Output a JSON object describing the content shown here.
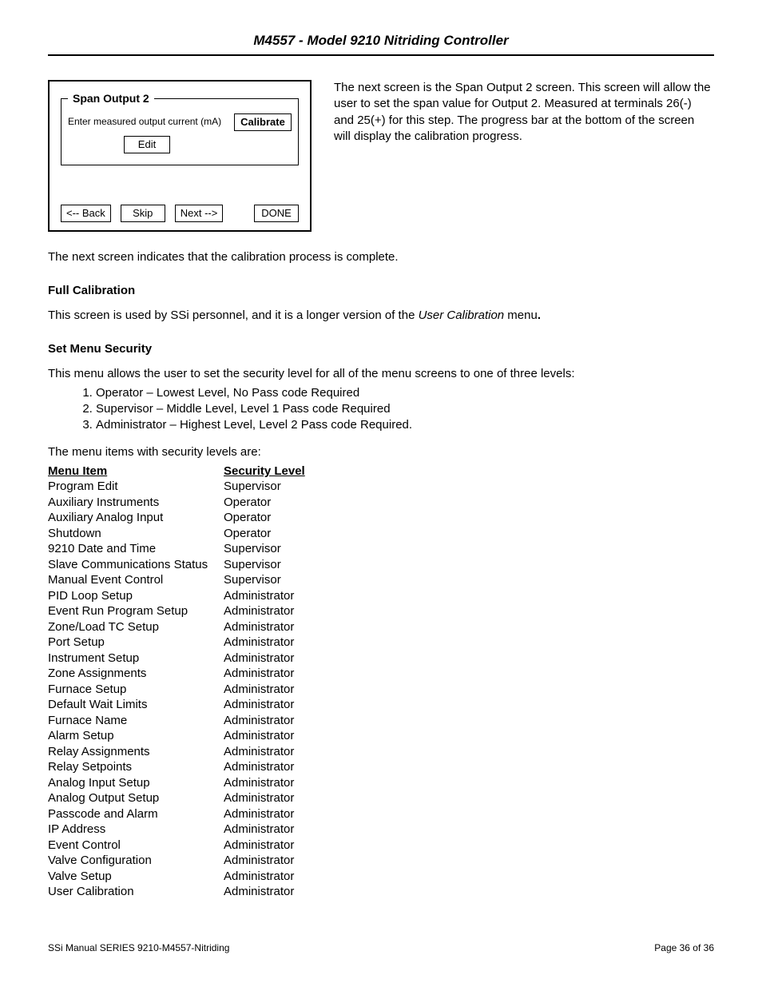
{
  "header": {
    "title": "M4557 - Model 9210 Nitriding Controller"
  },
  "device": {
    "legend": "Span Output 2",
    "instruction": "Enter measured output current (mA)",
    "calibrate": "Calibrate",
    "edit": "Edit",
    "nav": {
      "back": "<-- Back",
      "skip": "Skip",
      "next": "Next -->",
      "done": "DONE"
    }
  },
  "top_paragraph": "The next screen is the Span Output 2 screen.  This screen will allow the user to set the span value for Output 2.  Measured at terminals 26(-) and 25(+) for this step.  The progress bar at the bottom of the screen will display the calibration progress.",
  "after_device_p": "The next screen indicates that the calibration process is complete.",
  "full_cal_heading": "Full Calibration",
  "full_cal_text_prefix": "This screen is used by SSi personnel, and it is a longer version of the ",
  "full_cal_text_italic": "User Calibration",
  "full_cal_text_suffix": " menu",
  "set_menu_heading": "Set Menu Security",
  "set_menu_intro": "This menu allows the user to set the security level for all of the menu screens to one of three levels:",
  "levels": [
    "Operator – Lowest Level, No Pass code Required",
    "Supervisor – Middle Level, Level 1 Pass code Required",
    "Administrator – Highest Level, Level 2 Pass code Required."
  ],
  "levels_outro": "The menu items with security levels are:",
  "table": {
    "col_a_header": "Menu Item",
    "col_b_header": "Security Level",
    "rows": [
      {
        "item": "Program Edit",
        "level": "Supervisor"
      },
      {
        "item": "Auxiliary Instruments",
        "level": "Operator"
      },
      {
        "item": "Auxiliary Analog Input",
        "level": "Operator"
      },
      {
        "item": "Shutdown",
        "level": "Operator"
      },
      {
        "item": "9210 Date and Time",
        "level": "Supervisor"
      },
      {
        "item": "Slave Communications Status",
        "level": "Supervisor"
      },
      {
        "item": "Manual Event Control",
        "level": "Supervisor"
      },
      {
        "item": "PID Loop Setup",
        "level": "Administrator"
      },
      {
        "item": "Event Run Program Setup",
        "level": "Administrator"
      },
      {
        "item": "Zone/Load TC Setup",
        "level": "Administrator"
      },
      {
        "item": "Port Setup",
        "level": "Administrator"
      },
      {
        "item": "Instrument Setup",
        "level": "Administrator"
      },
      {
        "item": "Zone Assignments",
        "level": "Administrator"
      },
      {
        "item": "Furnace Setup",
        "level": "Administrator"
      },
      {
        "item": "Default Wait Limits",
        "level": "Administrator"
      },
      {
        "item": "Furnace Name",
        "level": "Administrator"
      },
      {
        "item": "Alarm Setup",
        "level": "Administrator"
      },
      {
        "item": "Relay Assignments",
        "level": "Administrator"
      },
      {
        "item": "Relay Setpoints",
        "level": "Administrator"
      },
      {
        "item": "Analog Input Setup",
        "level": "Administrator"
      },
      {
        "item": "Analog Output Setup",
        "level": "Administrator"
      },
      {
        "item": "Passcode and Alarm",
        "level": "Administrator"
      },
      {
        "item": "IP Address",
        "level": "Administrator"
      },
      {
        "item": "Event Control",
        "level": "Administrator"
      },
      {
        "item": "Valve Configuration",
        "level": "Administrator"
      },
      {
        "item": "Valve Setup",
        "level": "Administrator"
      },
      {
        "item": "User Calibration",
        "level": "Administrator"
      }
    ]
  },
  "footer": {
    "left": "SSi Manual SERIES 9210-M4557-Nitriding",
    "right": "Page 36 of 36"
  }
}
